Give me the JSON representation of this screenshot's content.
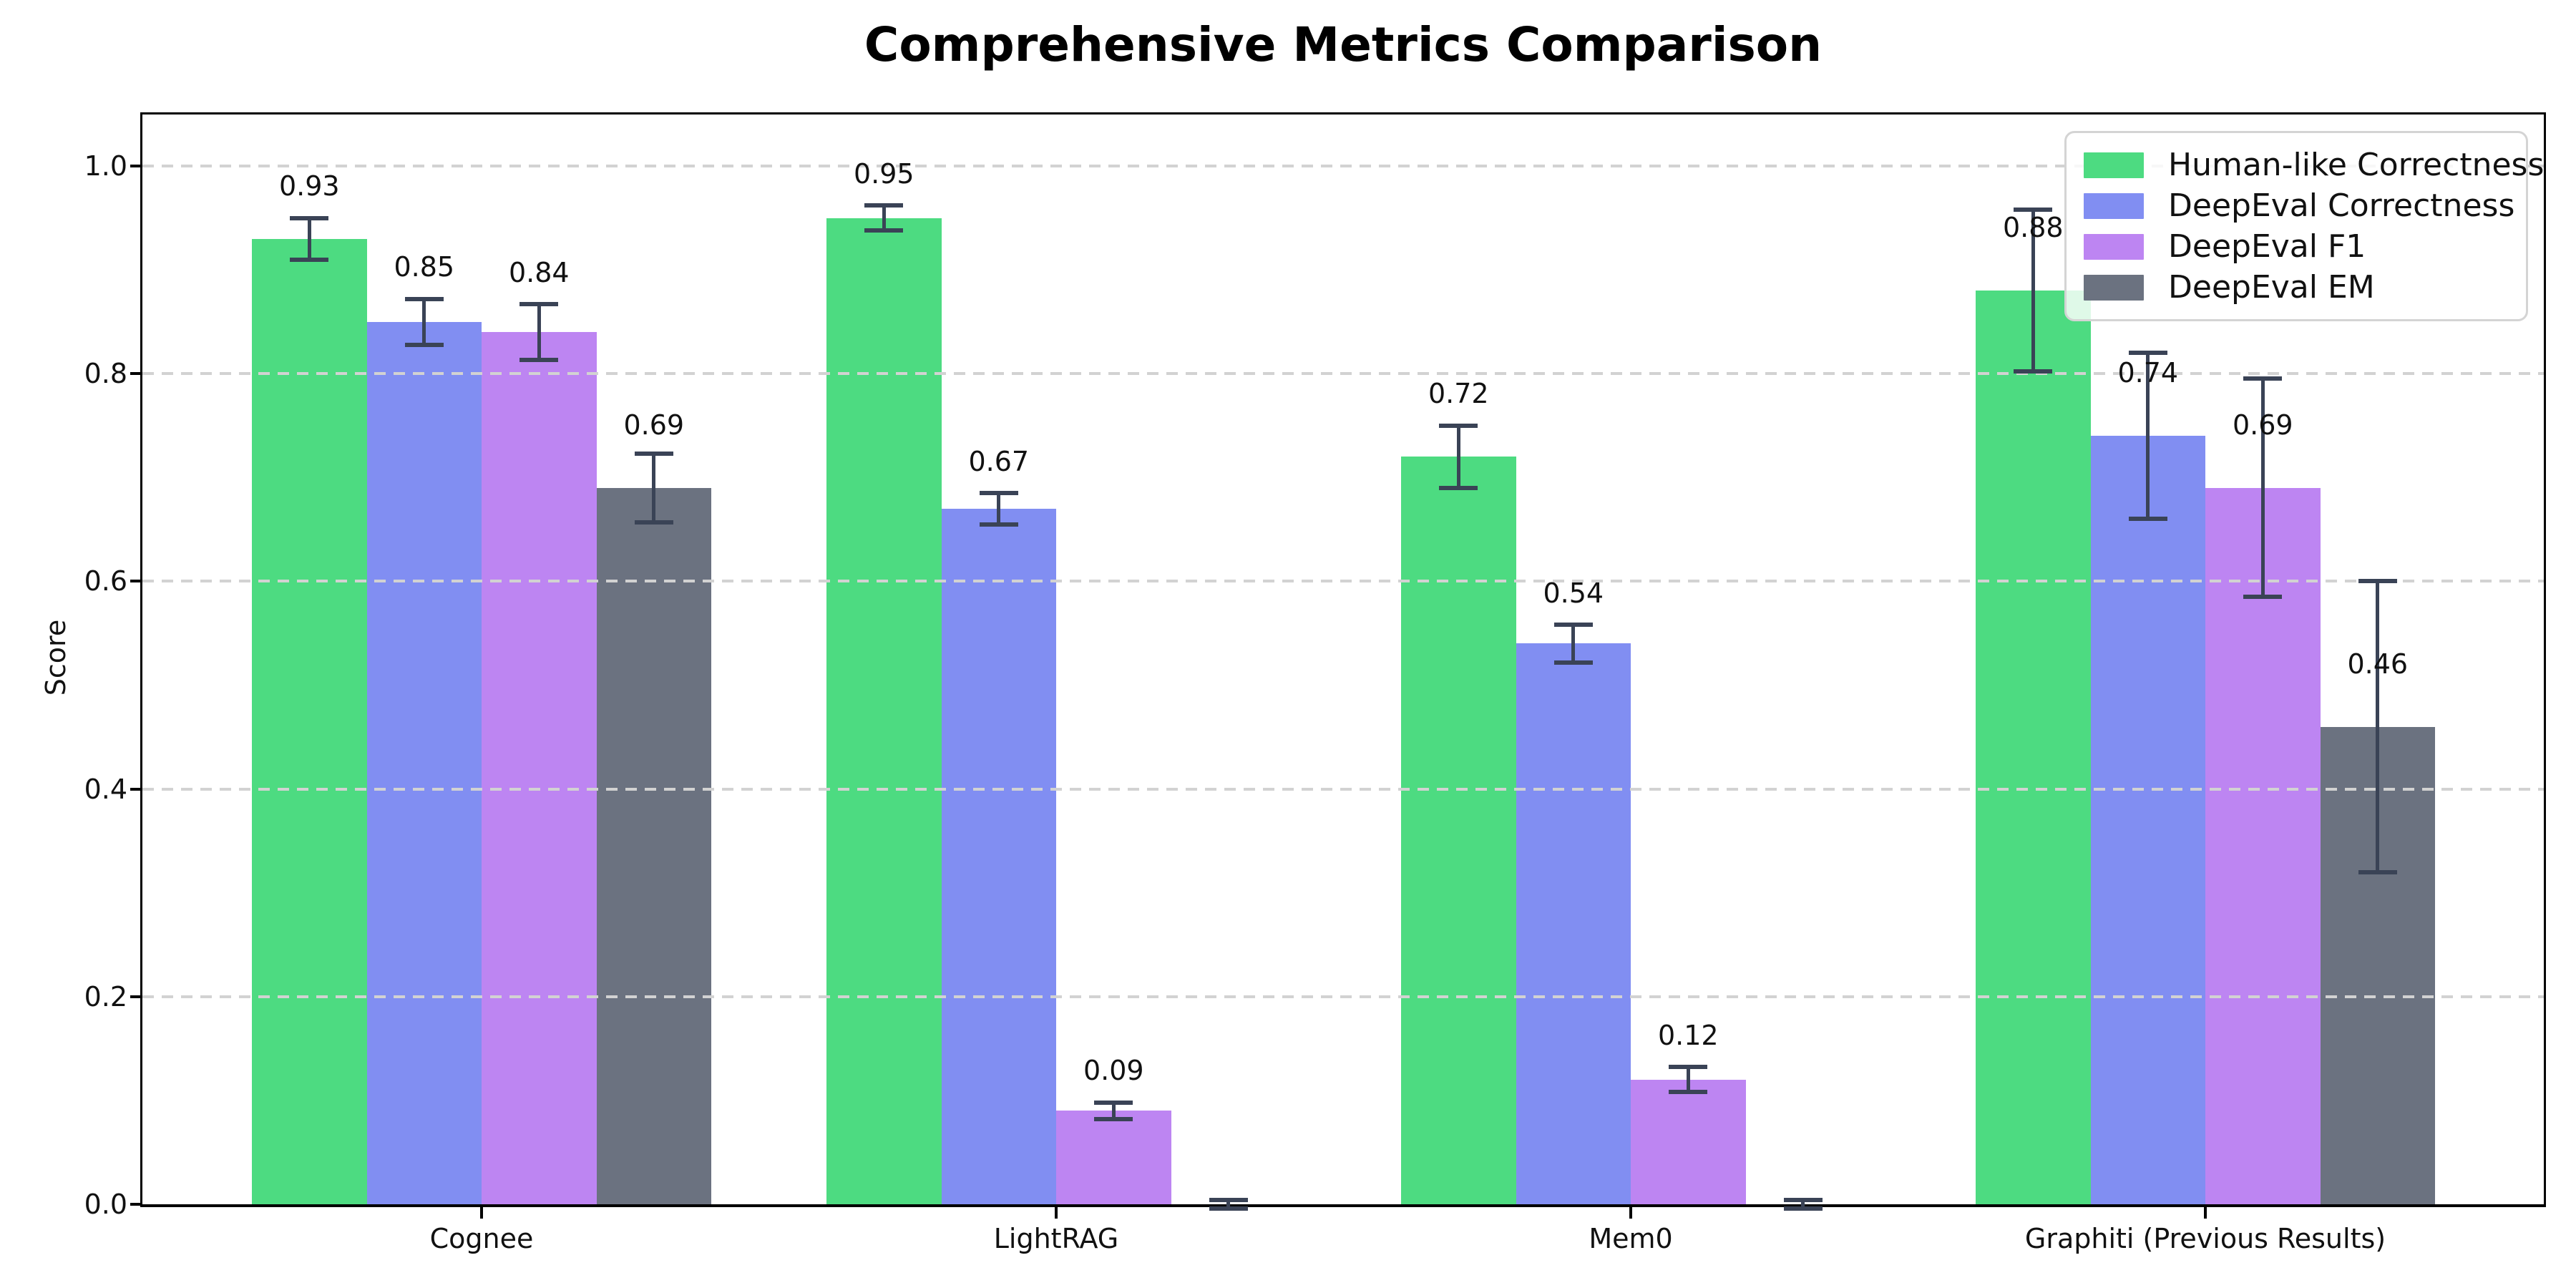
{
  "title": "Comprehensive Metrics Comparison",
  "chart_data": {
    "type": "bar",
    "title": "Comprehensive Metrics Comparison",
    "xlabel": "",
    "ylabel": "Score",
    "categories": [
      "Cognee",
      "LightRAG",
      "Mem0",
      "Graphiti (Previous Results)"
    ],
    "y_ticks": [
      "0.0",
      "0.2",
      "0.4",
      "0.6",
      "0.8",
      "1.0"
    ],
    "y_tick_values": [
      0.0,
      0.2,
      0.4,
      0.6,
      0.8,
      1.0
    ],
    "ylim": [
      0,
      1.05
    ],
    "grid": "horizontal-dashed",
    "grid_above_bars": true,
    "legend_position": "upper-right",
    "error_bar_color": "#3a4356",
    "series": [
      {
        "name": "Human-like Correctness",
        "color": "#4ddb81",
        "values": [
          0.93,
          0.95,
          0.72,
          0.88
        ],
        "errors": [
          0.02,
          0.012,
          0.03,
          0.078
        ],
        "value_labels": [
          "0.93",
          "0.95",
          "0.72",
          "0.88"
        ]
      },
      {
        "name": "DeepEval Correctness",
        "color": "#818ef2",
        "values": [
          0.85,
          0.67,
          0.54,
          0.74
        ],
        "errors": [
          0.022,
          0.015,
          0.018,
          0.08
        ],
        "value_labels": [
          "0.85",
          "0.67",
          "0.54",
          "0.74"
        ]
      },
      {
        "name": "DeepEval F1",
        "color": "#bd85f2",
        "values": [
          0.84,
          0.09,
          0.12,
          0.69
        ],
        "errors": [
          0.027,
          0.008,
          0.012,
          0.105
        ],
        "value_labels": [
          "0.84",
          "0.09",
          "0.12",
          "0.69"
        ]
      },
      {
        "name": "DeepEval EM",
        "color": "#6b7280",
        "values": [
          0.69,
          0.0,
          0.0,
          0.46
        ],
        "errors": [
          0.033,
          0.004,
          0.004,
          0.14
        ],
        "value_labels": [
          "0.69",
          "",
          "",
          "0.46"
        ]
      }
    ]
  },
  "colors": {
    "background": "#ffffff",
    "axis": "#000000",
    "grid": "#d2d2d2",
    "text": "#111111",
    "legend_border": "#d4d4d4"
  }
}
